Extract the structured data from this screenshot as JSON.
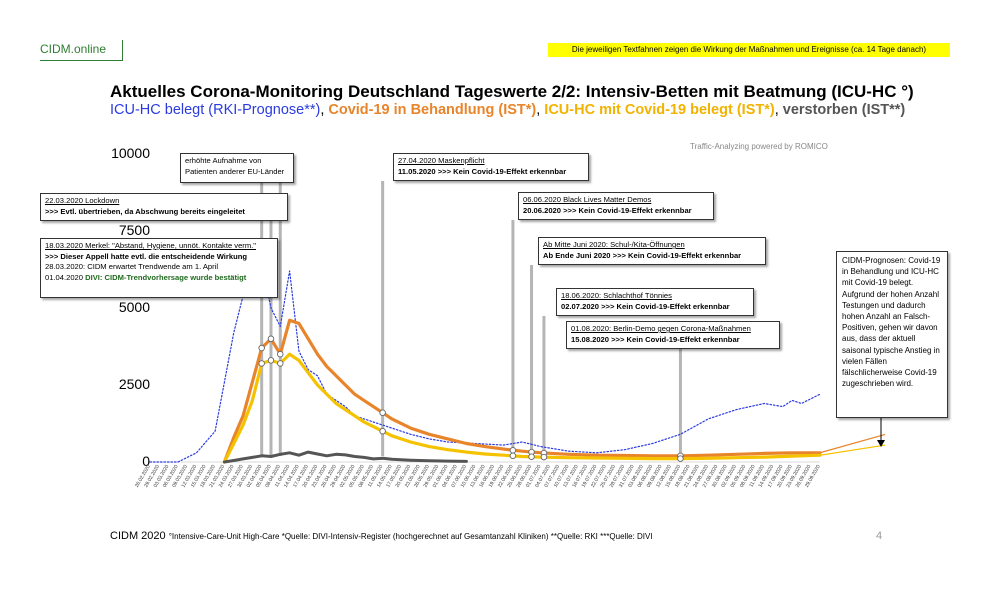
{
  "brand": "CIDM.online",
  "top_note": "Die jeweiligen Textfahnen zeigen die Wirkung der Maßnahmen und Ereignisse (ca. 14 Tage danach)",
  "title": "Aktuelles Corona-Monitoring Deutschland Tageswerte 2/2: Intensiv-Betten mit Beatmung (ICU-HC °)",
  "subtitle": {
    "part1": "ICU-HC belegt (RKI-Prognose**)",
    "sep1": ", ",
    "part2": "Covid-19 in Behandlung (IST*)",
    "sep2": ", ",
    "part3": "ICU-HC mit Covid-19 belegt (IST*)",
    "sep3": ", ",
    "part4": "verstorben (IST**)"
  },
  "traffic": "Traffic-Analyzing powered by ROMICO",
  "annotations": {
    "a1_l1": "erhöhte Aufnahme von",
    "a1_l2": "Patienten anderer EU-Länder",
    "a2_l1": "22.03.2020 Lockdown",
    "a2_l2": ">>> Evtl. übertrieben, da Abschwung bereits eingeleitet",
    "a3_l1": "18.03.2020 Merkel: \"Abstand, Hygiene, unnöt. Kontakte verm.\"",
    "a3_l2": ">>> Dieser Appell hatte evtl. die entscheidende Wirkung",
    "a3_l3": "28.03.2020: CIDM erwartet Trendwende am 1. April",
    "a3_l4a": "01.04.2020 ",
    "a3_l4b": "DIVI: CIDM-Trendvorhersage wurde bestätigt",
    "a4_l1": "27.04.2020 Maskenpflicht",
    "a4_l2": "11.05.2020 >>> Kein Covid-19-Effekt erkennbar",
    "a5_l1": "06.06.2020 Black Lives Matter Demos",
    "a5_l2": "20.06.2020 >>> Kein Covid-19-Effekt erkennbar",
    "a6_l1": "Ab Mitte Juni 2020: Schul-/Kita-Öffnungen",
    "a6_l2": "Ab Ende Juni 2020 >>> Kein Covid-19-Effekt erkennbar",
    "a7_l1": "18.06.2020: Schlachthof Tönnies",
    "a7_l2": "02.07.2020 >>> Kein Covid-19-Effekt erkennbar",
    "a8_l1": "01.08.2020: Berlin-Demo gegen Corona-Maßnahmen",
    "a8_l2": "15.08.2020 >>> Kein Covid-19-Effekt erkennbar",
    "forecast": "CIDM-Prognosen: Covid-19 in Behandlung und ICU-HC mit Covid-19 belegt. Aufgrund der hohen Anzahl Testungen und dadurch hohen Anzahl an Falsch-Positiven, gehen wir davon aus, dass der aktuell saisonal typische Anstieg in vielen Fällen fälschlicherweise Covid-19 zugeschrieben wird."
  },
  "footer": {
    "main": "CIDM 2020",
    "notes": "°Intensive-Care-Unit High-Care  *Quelle: DIVI-Intensiv-Register (hochgerechnet auf Gesamtanzahl Kliniken)  **Quelle: RKI  ***Quelle: DIVI"
  },
  "page_number": "4",
  "colors": {
    "rki_forecast": "#2b3be0",
    "covid_treatment": "#e8852b",
    "icu_covid": "#f5c200",
    "deceased": "#555555",
    "marker_line": "#b5b5b5"
  },
  "chart_data": {
    "type": "line",
    "ylim": [
      0,
      10000
    ],
    "yticks": [
      "10000",
      "7500",
      "5000",
      "2500",
      "0"
    ],
    "x_start": "26.02.2020",
    "x_end": "29.09.2020",
    "x_step_days": 3,
    "x_labels": [
      "26.02.2020",
      "29.02.2020",
      "03.03.2020",
      "06.03.2020",
      "09.03.2020",
      "12.03.2020",
      "15.03.2020",
      "18.03.2020",
      "21.03.2020",
      "24.03.2020",
      "27.03.2020",
      "30.03.2020",
      "02.04.2020",
      "05.04.2020",
      "08.04.2020",
      "11.04.2020",
      "14.04.2020",
      "17.04.2020",
      "20.04.2020",
      "23.04.2020",
      "26.04.2020",
      "29.04.2020",
      "02.05.2020",
      "05.05.2020",
      "08.05.2020",
      "11.05.2020",
      "14.05.2020",
      "17.05.2020",
      "20.05.2020",
      "23.05.2020",
      "26.05.2020",
      "29.05.2020",
      "01.06.2020",
      "04.06.2020",
      "07.06.2020",
      "10.06.2020",
      "13.06.2020",
      "16.06.2020",
      "19.06.2020",
      "22.06.2020",
      "25.06.2020",
      "28.06.2020",
      "01.07.2020",
      "04.07.2020",
      "07.07.2020",
      "10.07.2020",
      "13.07.2020",
      "16.07.2020",
      "19.07.2020",
      "22.07.2020",
      "25.07.2020",
      "28.07.2020",
      "31.07.2020",
      "03.08.2020",
      "06.08.2020",
      "09.08.2020",
      "12.08.2020",
      "15.08.2020",
      "18.08.2020",
      "21.08.2020",
      "24.08.2020",
      "27.08.2020",
      "30.08.2020",
      "02.09.2020",
      "05.09.2020",
      "08.09.2020",
      "11.09.2020",
      "14.09.2020",
      "17.09.2020",
      "20.09.2020",
      "23.09.2020",
      "26.09.2020",
      "29.09.2020"
    ],
    "series": [
      {
        "name": "ICU-HC belegt (RKI-Prognose**)",
        "style": "dotted",
        "x": [
          "26.02.2020",
          "06.03.2020",
          "12.03.2020",
          "18.03.2020",
          "24.03.2020",
          "30.03.2020",
          "02.04.2020",
          "05.04.2020",
          "08.04.2020",
          "11.04.2020",
          "14.04.2020",
          "17.04.2020",
          "20.04.2020",
          "23.04.2020",
          "26.04.2020",
          "29.04.2020",
          "02.05.2020",
          "08.05.2020",
          "14.05.2020",
          "20.05.2020",
          "26.05.2020",
          "01.06.2020",
          "10.06.2020",
          "19.06.2020",
          "25.06.2020",
          "01.07.2020",
          "10.07.2020",
          "19.07.2020",
          "28.07.2020",
          "06.08.2020",
          "15.08.2020",
          "24.08.2020",
          "02.09.2020",
          "11.09.2020",
          "17.09.2020",
          "20.09.2020",
          "23.09.2020",
          "29.09.2020"
        ],
        "y": [
          0,
          0,
          300,
          1000,
          4200,
          6600,
          6400,
          5000,
          4400,
          6200,
          3600,
          3000,
          2800,
          2200,
          2000,
          1800,
          1500,
          1300,
          1100,
          900,
          750,
          650,
          600,
          550,
          650,
          500,
          350,
          300,
          400,
          600,
          900,
          1400,
          1700,
          1900,
          1800,
          2000,
          1900,
          2200
        ]
      },
      {
        "name": "Covid-19 in Behandlung (IST*)",
        "x": [
          "21.03.2020",
          "24.03.2020",
          "27.03.2020",
          "30.03.2020",
          "02.04.2020",
          "05.04.2020",
          "08.04.2020",
          "11.04.2020",
          "14.04.2020",
          "17.04.2020",
          "20.04.2020",
          "23.04.2020",
          "26.04.2020",
          "29.04.2020",
          "02.05.2020",
          "05.05.2020",
          "08.05.2020",
          "11.05.2020",
          "14.05.2020",
          "20.05.2020",
          "26.05.2020",
          "01.06.2020",
          "07.06.2020",
          "13.06.2020",
          "19.06.2020",
          "25.06.2020",
          "01.07.2020",
          "10.07.2020",
          "19.07.2020",
          "28.07.2020",
          "06.08.2020",
          "15.08.2020",
          "24.08.2020",
          "02.09.2020",
          "11.09.2020",
          "20.09.2020",
          "29.09.2020"
        ],
        "y": [
          0,
          800,
          1500,
          2600,
          3700,
          4000,
          3500,
          4600,
          4500,
          4000,
          3500,
          3100,
          2800,
          2500,
          2200,
          2000,
          1800,
          1600,
          1400,
          1100,
          900,
          750,
          600,
          500,
          420,
          350,
          300,
          250,
          220,
          210,
          200,
          200,
          220,
          250,
          280,
          300,
          300
        ]
      },
      {
        "name": "ICU-HC mit Covid-19 belegt (IST*)",
        "x": [
          "21.03.2020",
          "24.03.2020",
          "27.03.2020",
          "30.03.2020",
          "02.04.2020",
          "05.04.2020",
          "08.04.2020",
          "11.04.2020",
          "14.04.2020",
          "17.04.2020",
          "20.04.2020",
          "23.04.2020",
          "26.04.2020",
          "29.04.2020",
          "02.05.2020",
          "05.05.2020",
          "08.05.2020",
          "11.05.2020",
          "14.05.2020",
          "20.05.2020",
          "26.05.2020",
          "01.06.2020",
          "07.06.2020",
          "13.06.2020",
          "19.06.2020",
          "25.06.2020",
          "01.07.2020",
          "10.07.2020",
          "19.07.2020",
          "28.07.2020",
          "06.08.2020",
          "15.08.2020",
          "24.08.2020",
          "02.09.2020",
          "11.09.2020",
          "20.09.2020",
          "29.09.2020"
        ],
        "y": [
          0,
          600,
          1200,
          2000,
          3200,
          3300,
          3200,
          3500,
          3300,
          2900,
          2500,
          2200,
          1900,
          1700,
          1500,
          1300,
          1150,
          1000,
          850,
          650,
          500,
          400,
          320,
          260,
          220,
          180,
          160,
          140,
          130,
          120,
          110,
          110,
          120,
          140,
          160,
          190,
          220
        ]
      },
      {
        "name": "verstorben (IST**)",
        "x": [
          "21.03.2020",
          "24.03.2020",
          "27.03.2020",
          "30.03.2020",
          "02.04.2020",
          "05.04.2020",
          "08.04.2020",
          "11.04.2020",
          "14.04.2020",
          "17.04.2020",
          "20.04.2020",
          "23.04.2020",
          "26.04.2020",
          "29.04.2020",
          "02.05.2020",
          "05.05.2020",
          "08.05.2020",
          "11.05.2020",
          "14.05.2020",
          "20.05.2020",
          "26.05.2020",
          "01.06.2020",
          "07.06.2020"
        ],
        "y": [
          0,
          50,
          100,
          150,
          200,
          180,
          250,
          300,
          220,
          320,
          260,
          200,
          250,
          230,
          180,
          150,
          100,
          120,
          90,
          60,
          40,
          30,
          20
        ]
      }
    ],
    "forecast_lines": [
      {
        "x": [
          "29.09.2020",
          "20.10.2020"
        ],
        "y": [
          300,
          700
        ]
      },
      {
        "x": [
          "29.09.2020",
          "20.10.2020"
        ],
        "y": [
          220,
          550
        ]
      }
    ],
    "event_markers": [
      "02.04.2020",
      "05.04.2020",
      "08.04.2020",
      "11.05.2020",
      "22.06.2020",
      "28.06.2020",
      "02.07.2020",
      "15.08.2020"
    ]
  }
}
